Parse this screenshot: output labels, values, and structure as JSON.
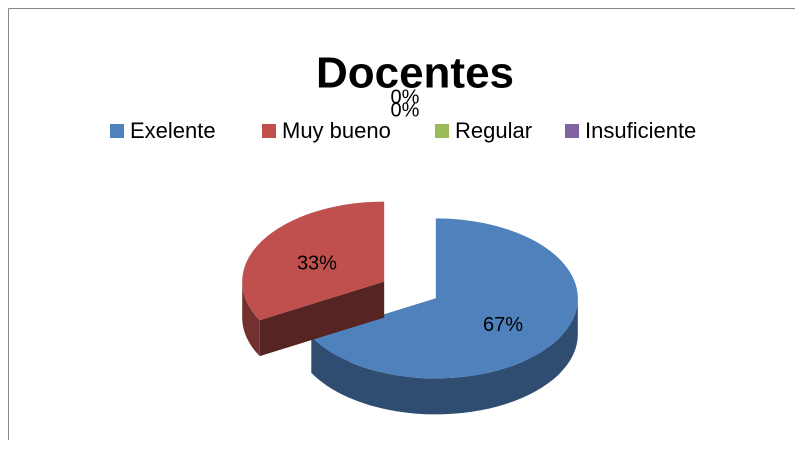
{
  "chart_data": {
    "type": "pie",
    "title": "Docentes",
    "categories": [
      "Exelente",
      "Muy bueno",
      "Regular",
      "Insuficiente"
    ],
    "values": [
      67,
      33,
      0,
      0
    ],
    "value_labels": [
      "67%",
      "33%",
      "0%",
      "0%"
    ],
    "colors": [
      "#4f81bd",
      "#c0504d",
      "#9bbb59",
      "#8064a2"
    ],
    "legend": "top"
  }
}
